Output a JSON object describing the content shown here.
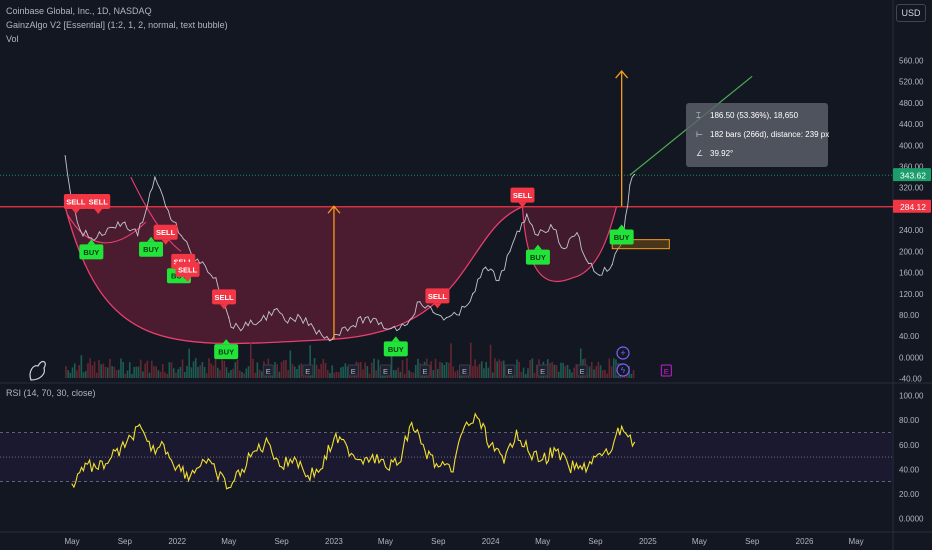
{
  "header": {
    "symbol_line": "Coinbase Global, Inc., 1D, NASDAQ",
    "indicator_line": "GainzAlgo V2 [Essential] (1:2, 1, 2, normal, text bubble)",
    "volume_line": "Vol",
    "rsi_line": "RSI (14, 70, 30, close)"
  },
  "currency_button": "USD",
  "measure_tooltip": {
    "price_change": "186.50 (53.36%), 18,650",
    "bars_distance": "182 bars (266d), distance: 239 px",
    "angle": "39.92°",
    "icons": [
      "price-range-icon",
      "bars-range-icon",
      "angle-icon"
    ]
  },
  "colors": {
    "background": "#131722",
    "price_line": "#c2c5cc",
    "resistance_line": "#f23645",
    "cup_fill": "#7a1f3c",
    "cup_curve": "#e83e6c",
    "buy": "#22e33a",
    "sell": "#f23645",
    "target_arrow": "#f59d1b",
    "trend_line": "#4caf50",
    "rsi_line": "#f0e030",
    "last_price_label": "#1b9e6c"
  },
  "chart_data": [
    {
      "type": "line",
      "title": "Coinbase Global, Inc., 1D, NASDAQ",
      "xlabel": "",
      "ylabel": "",
      "x_tick_labels": [
        "May",
        "Sep",
        "2022",
        "May",
        "Sep",
        "2023",
        "May",
        "Sep",
        "2024",
        "May",
        "Sep",
        "2025",
        "May",
        "Sep",
        "2026",
        "May"
      ],
      "y_tick_labels": [
        "560.00",
        "520.00",
        "480.00",
        "440.00",
        "400.00",
        "360.00",
        "320.00",
        "280.00",
        "240.00",
        "200.00",
        "160.00",
        "120.00",
        "80.00",
        "40.00",
        "0.0000",
        "-40.00"
      ],
      "ylim": [
        -40,
        560
      ],
      "grid": false,
      "x": [
        "2021-04-15",
        "2021-05-01",
        "2021-05-20",
        "2021-06-15",
        "2021-07-10",
        "2021-08-05",
        "2021-09-01",
        "2021-10-01",
        "2021-11-10",
        "2021-12-05",
        "2022-01-10",
        "2022-02-05",
        "2022-03-01",
        "2022-04-01",
        "2022-05-01",
        "2022-05-12",
        "2022-06-15",
        "2022-07-15",
        "2022-08-15",
        "2022-09-15",
        "2022-10-15",
        "2022-11-15",
        "2022-12-28",
        "2023-01-20",
        "2023-02-15",
        "2023-03-15",
        "2023-04-15",
        "2023-05-15",
        "2023-06-15",
        "2023-07-20",
        "2023-08-20",
        "2023-09-20",
        "2023-10-20",
        "2023-11-20",
        "2023-12-20",
        "2024-01-20",
        "2024-02-15",
        "2024-03-25",
        "2024-04-20",
        "2024-05-20",
        "2024-06-20",
        "2024-07-20",
        "2024-08-10",
        "2024-09-10",
        "2024-10-10",
        "2024-11-05",
        "2024-11-20",
        "2024-12-01"
      ],
      "series": [
        {
          "values": [
            380,
            290,
            240,
            225,
            230,
            245,
            255,
            230,
            340,
            285,
            230,
            190,
            180,
            150,
            75,
            55,
            60,
            70,
            90,
            65,
            75,
            55,
            34,
            55,
            60,
            75,
            62,
            55,
            60,
            105,
            85,
            75,
            80,
            120,
            170,
            145,
            200,
            270,
            230,
            250,
            205,
            235,
            185,
            155,
            175,
            230,
            325,
            345
          ]
        }
      ],
      "last_price": "343.62",
      "resistance_price": "284.12",
      "resistance_value": 284.12,
      "signals": [
        {
          "label": "SELL",
          "date": "2021-05-10",
          "price": 278
        },
        {
          "label": "SELL",
          "date": "2021-07-01",
          "price": 278
        },
        {
          "label": "BUY",
          "date": "2021-06-15",
          "price": 215
        },
        {
          "label": "BUY",
          "date": "2021-11-01",
          "price": 220
        },
        {
          "label": "SELL",
          "date": "2021-12-05",
          "price": 220
        },
        {
          "label": "BUY",
          "date": "2022-01-05",
          "price": 170
        },
        {
          "label": "SELL",
          "date": "2022-01-15",
          "price": 165
        },
        {
          "label": "SELL",
          "date": "2022-01-25",
          "price": 150
        },
        {
          "label": "SELL",
          "date": "2022-04-20",
          "price": 98
        },
        {
          "label": "BUY",
          "date": "2022-04-25",
          "price": 27
        },
        {
          "label": "BUY",
          "date": "2023-05-25",
          "price": 32
        },
        {
          "label": "SELL",
          "date": "2023-08-30",
          "price": 100
        },
        {
          "label": "SELL",
          "date": "2024-03-15",
          "price": 290
        },
        {
          "label": "BUY",
          "date": "2024-04-20",
          "price": 205
        },
        {
          "label": "BUY",
          "date": "2024-11-01",
          "price": 243
        }
      ],
      "cup_left_date": "2021-04-15",
      "cup_bottom_date": "2022-12-28",
      "cup_bottom_value": 34,
      "cup_right_date": "2024-03-15",
      "handle_start_date": "2024-03-15",
      "handle_bottom_date": "2024-07-10",
      "handle_bottom_value": 150,
      "handle_end_date": "2024-10-20",
      "cup_target_arrow": {
        "date": "2023-01-01",
        "from": 34,
        "to": 285
      },
      "breakout_target_arrow": {
        "date": "2024-11-01",
        "from": 285,
        "to": 540
      },
      "trend_line": {
        "from_date": "2024-11-20",
        "from": 343.62,
        "to_date": "2025-09-01",
        "to": 530
      },
      "zone": {
        "from_date": "2024-10-10",
        "to_date": "2025-02-20",
        "low": 205,
        "high": 222
      },
      "event_markers": [
        {
          "label": "E",
          "date": "2022-08-01"
        },
        {
          "label": "E",
          "date": "2022-11-01"
        },
        {
          "label": "E",
          "date": "2023-02-15"
        },
        {
          "label": "E",
          "date": "2023-05-01"
        },
        {
          "label": "E",
          "date": "2023-08-01"
        },
        {
          "label": "E",
          "date": "2023-11-01"
        },
        {
          "label": "E",
          "date": "2024-02-15"
        },
        {
          "label": "E",
          "date": "2024-05-01"
        },
        {
          "label": "E",
          "date": "2024-08-01"
        },
        {
          "label": "E",
          "date": "2024-10-30"
        },
        {
          "label": "E",
          "date": "2025-02-13"
        }
      ]
    },
    {
      "type": "line",
      "title": "RSI (14, 70, 30, close)",
      "xlabel": "",
      "ylabel": "",
      "y_tick_labels": [
        "100.00",
        "80.00",
        "60.00",
        "40.00",
        "20.00",
        "0.0000"
      ],
      "ylim": [
        0,
        100
      ],
      "levels": [
        70,
        50,
        30
      ],
      "x": [
        "2021-05-01",
        "2021-06-01",
        "2021-07-01",
        "2021-08-01",
        "2021-09-01",
        "2021-10-01",
        "2021-11-01",
        "2021-12-01",
        "2022-01-01",
        "2022-02-01",
        "2022-03-01",
        "2022-04-01",
        "2022-05-01",
        "2022-06-01",
        "2022-07-01",
        "2022-08-01",
        "2022-09-01",
        "2022-10-01",
        "2022-11-01",
        "2022-12-01",
        "2023-01-01",
        "2023-02-01",
        "2023-03-01",
        "2023-04-01",
        "2023-05-01",
        "2023-06-01",
        "2023-07-01",
        "2023-08-01",
        "2023-09-01",
        "2023-10-01",
        "2023-11-01",
        "2023-12-01",
        "2024-01-01",
        "2024-02-01",
        "2024-03-01",
        "2024-04-01",
        "2024-05-01",
        "2024-06-01",
        "2024-07-01",
        "2024-08-01",
        "2024-09-01",
        "2024-10-01",
        "2024-11-01",
        "2024-12-01"
      ],
      "series": [
        {
          "values": [
            28,
            45,
            40,
            50,
            58,
            75,
            55,
            60,
            42,
            35,
            48,
            38,
            25,
            40,
            55,
            62,
            42,
            50,
            35,
            40,
            65,
            58,
            48,
            52,
            42,
            45,
            78,
            55,
            42,
            38,
            75,
            82,
            60,
            45,
            72,
            52,
            48,
            55,
            42,
            40,
            50,
            52,
            75,
            62
          ]
        }
      ]
    }
  ]
}
